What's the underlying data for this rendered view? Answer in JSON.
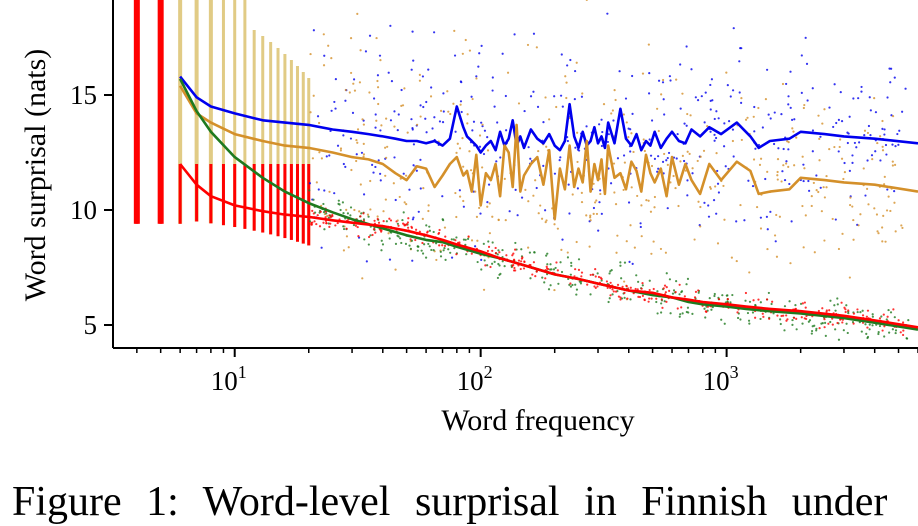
{
  "caption": "Figure 1: Word-level surprisal in Finnish under",
  "chart_data": {
    "type": "scatter",
    "title": "",
    "xlabel": "Word frequency",
    "ylabel": "Word surprisal (nats)",
    "xscale": "log",
    "xlim": [
      3.2,
      6000
    ],
    "ylim": [
      4.0,
      20.0
    ],
    "yticks": [
      5,
      10,
      15
    ],
    "ytick_labels": [
      "5",
      "10",
      "15"
    ],
    "xticks": [
      10,
      100,
      1000
    ],
    "xtick_labels": [
      {
        "base": "10",
        "exp": "1"
      },
      {
        "base": "10",
        "exp": "2"
      },
      {
        "base": "10",
        "exp": "3"
      }
    ],
    "grid": false,
    "legend": "none",
    "series": [
      {
        "color": "#0000ee",
        "x": [
          6,
          7,
          8,
          10,
          13,
          16,
          20,
          25,
          30,
          35,
          40,
          45,
          50,
          55,
          60,
          65,
          70,
          75,
          80,
          85,
          88,
          92,
          96,
          100,
          105,
          110,
          115,
          120,
          125,
          130,
          135,
          140,
          145,
          150,
          160,
          170,
          180,
          190,
          200,
          210,
          220,
          230,
          240,
          250,
          260,
          270,
          280,
          290,
          300,
          310,
          320,
          330,
          350,
          370,
          390,
          410,
          430,
          450,
          470,
          490,
          510,
          540,
          570,
          600,
          640,
          680,
          720,
          780,
          850,
          950,
          1100,
          1250,
          1350,
          1500,
          1800,
          2000,
          2500,
          3000,
          4000,
          6000
        ],
        "y": [
          15.8,
          14.9,
          14.5,
          14.2,
          13.9,
          13.8,
          13.7,
          13.5,
          13.4,
          13.3,
          13.2,
          13.1,
          13.0,
          13.0,
          12.9,
          13.0,
          12.8,
          13.1,
          14.5,
          13.6,
          13.2,
          13.0,
          12.8,
          12.5,
          12.8,
          13.0,
          12.6,
          13.4,
          12.8,
          13.1,
          13.9,
          12.8,
          13.2,
          12.7,
          13.5,
          13.1,
          12.9,
          13.3,
          12.8,
          12.6,
          13.0,
          14.6,
          13.2,
          12.7,
          13.4,
          12.8,
          13.0,
          13.6,
          12.9,
          13.2,
          12.7,
          13.8,
          12.9,
          14.4,
          13.1,
          12.8,
          13.3,
          12.6,
          13.0,
          12.8,
          13.4,
          12.7,
          13.1,
          13.4,
          13.0,
          12.9,
          13.5,
          13.2,
          13.6,
          13.3,
          13.8,
          13.2,
          12.7,
          13.0,
          13.1,
          13.4,
          13.3,
          13.2,
          13.1,
          12.9
        ]
      },
      {
        "color": "#d4902a",
        "x": [
          6,
          7,
          8,
          10,
          13,
          16,
          20,
          25,
          30,
          35,
          40,
          45,
          50,
          55,
          60,
          65,
          70,
          75,
          80,
          85,
          88,
          92,
          96,
          100,
          105,
          110,
          115,
          120,
          125,
          130,
          135,
          140,
          145,
          150,
          160,
          170,
          180,
          190,
          200,
          210,
          220,
          230,
          240,
          250,
          260,
          270,
          280,
          290,
          300,
          310,
          320,
          330,
          350,
          370,
          390,
          410,
          430,
          450,
          470,
          490,
          510,
          540,
          570,
          600,
          640,
          680,
          720,
          780,
          850,
          950,
          1100,
          1250,
          1350,
          1500,
          1800,
          2000,
          2500,
          3000,
          4000,
          6000
        ],
        "y": [
          15.4,
          14.2,
          13.8,
          13.3,
          13.0,
          12.8,
          12.7,
          12.5,
          12.3,
          12.2,
          12.0,
          11.6,
          11.3,
          11.9,
          11.8,
          11.0,
          11.5,
          12.0,
          12.3,
          11.5,
          11.7,
          10.8,
          12.4,
          10.2,
          11.6,
          11.3,
          12.0,
          10.6,
          12.8,
          12.5,
          11.0,
          13.7,
          10.8,
          11.5,
          12.0,
          12.3,
          11.1,
          12.6,
          9.6,
          11.8,
          10.9,
          12.8,
          11.0,
          11.8,
          11.2,
          13.0,
          10.8,
          12.0,
          11.3,
          12.2,
          10.7,
          12.8,
          11.4,
          11.6,
          10.9,
          12.1,
          11.7,
          10.8,
          12.4,
          11.6,
          11.2,
          11.8,
          10.6,
          12.3,
          11.1,
          12.0,
          11.3,
          10.7,
          12.0,
          11.3,
          12.1,
          11.7,
          10.7,
          10.8,
          10.9,
          11.4,
          11.3,
          11.2,
          11.1,
          10.8
        ]
      },
      {
        "color": "#1f7a1f",
        "x": [
          6,
          7,
          8,
          10,
          13,
          16,
          20,
          25,
          30,
          40,
          50,
          60,
          70,
          80,
          100,
          120,
          150,
          200,
          250,
          300,
          400,
          500,
          600,
          700,
          800,
          1000,
          1200,
          1500,
          2000,
          3000,
          4000,
          6000
        ],
        "y": [
          15.7,
          14.3,
          13.4,
          12.3,
          11.4,
          10.8,
          10.3,
          9.9,
          9.6,
          9.2,
          8.9,
          8.7,
          8.6,
          8.4,
          8.1,
          7.9,
          7.6,
          7.2,
          7.0,
          6.8,
          6.5,
          6.3,
          6.2,
          6.0,
          5.9,
          5.8,
          5.7,
          5.6,
          5.5,
          5.3,
          5.1,
          4.8
        ]
      },
      {
        "color": "#ff0000",
        "x": [
          6,
          7,
          8,
          10,
          13,
          16,
          20,
          25,
          30,
          40,
          50,
          60,
          70,
          80,
          100,
          120,
          150,
          200,
          250,
          300,
          400,
          500,
          600,
          700,
          800,
          1000,
          1200,
          1500,
          2000,
          3000,
          4000,
          6000
        ],
        "y": [
          12.0,
          11.1,
          10.6,
          10.2,
          9.95,
          9.8,
          9.7,
          9.55,
          9.45,
          9.3,
          9.1,
          8.9,
          8.7,
          8.5,
          8.2,
          7.9,
          7.6,
          7.2,
          7.0,
          6.8,
          6.5,
          6.4,
          6.2,
          6.1,
          6.0,
          5.9,
          5.8,
          5.7,
          5.6,
          5.4,
          5.2,
          4.9
        ]
      }
    ]
  }
}
